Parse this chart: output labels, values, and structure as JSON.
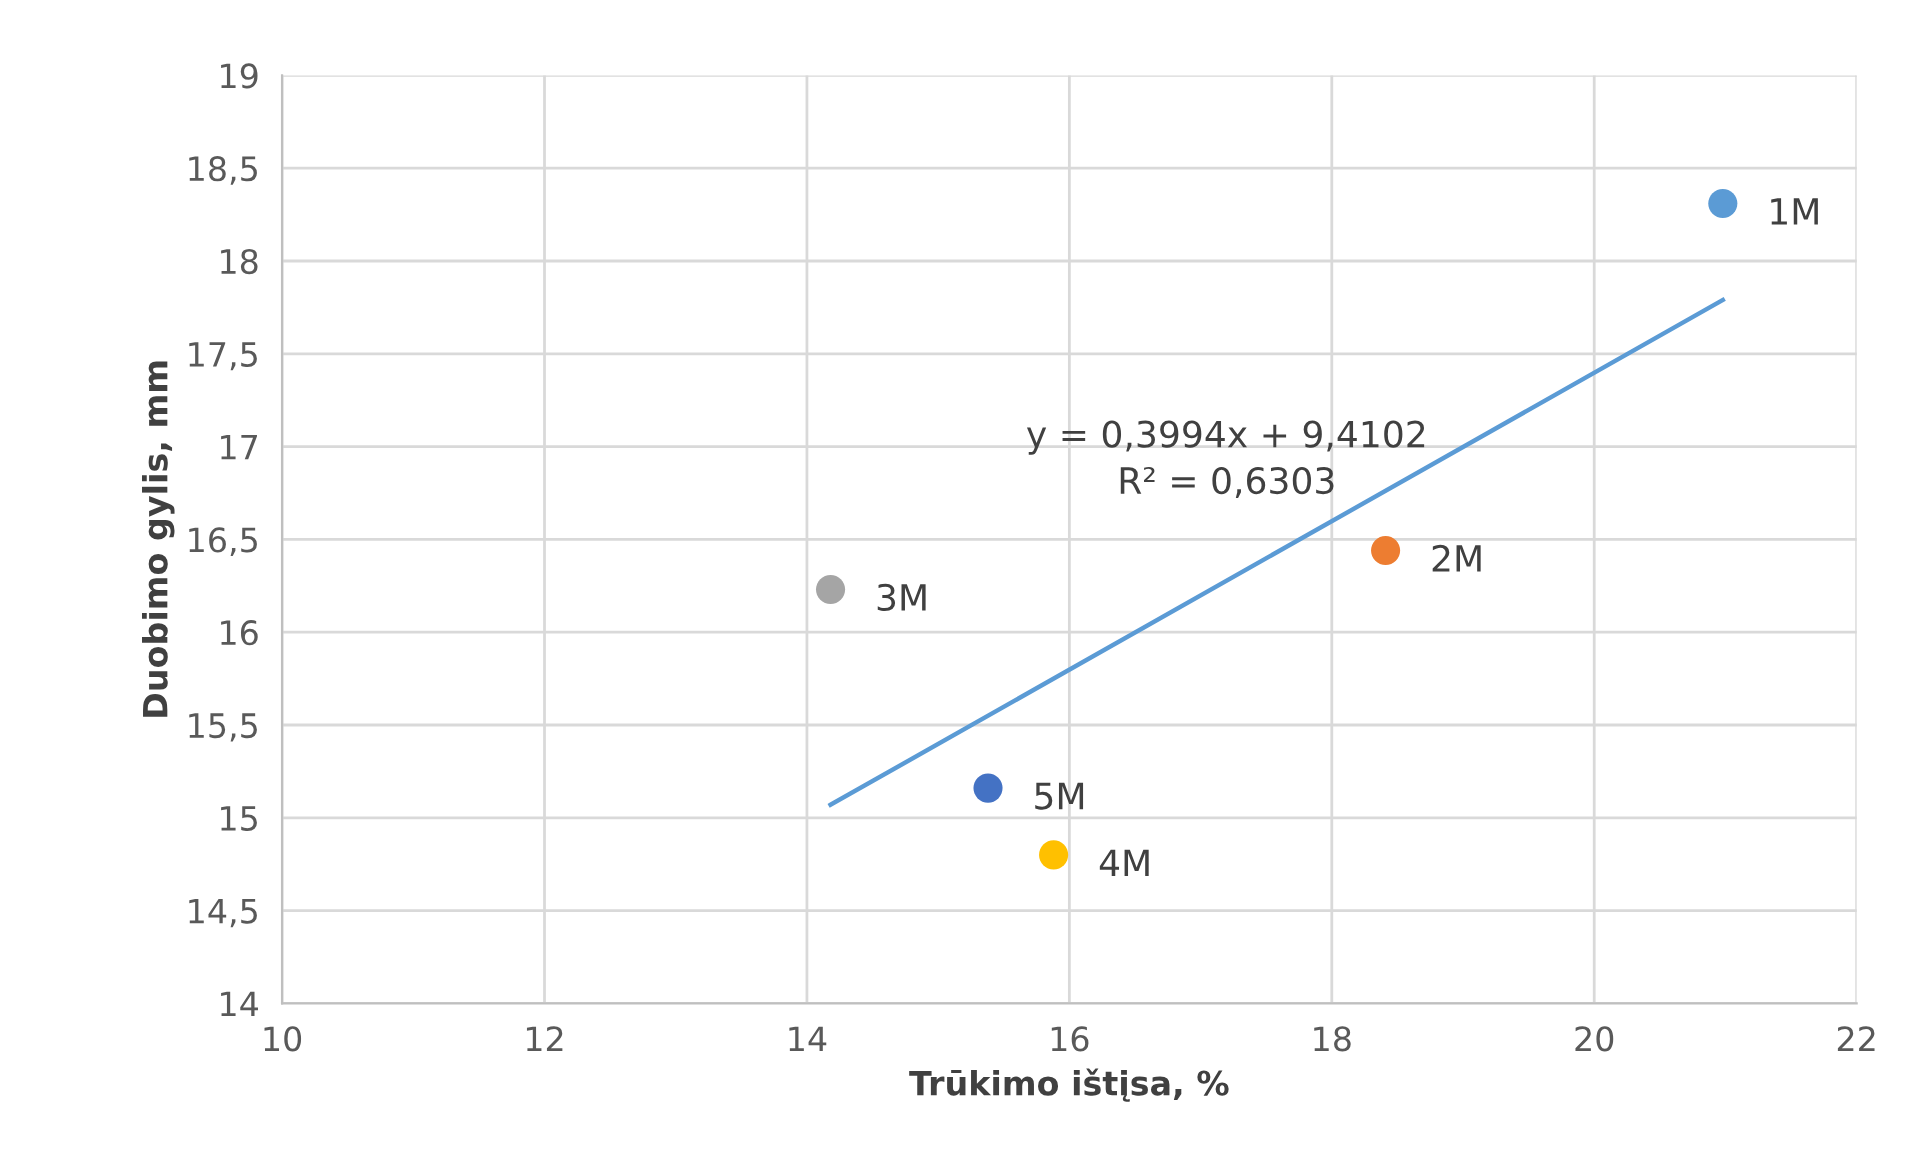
{
  "chart_data": {
    "type": "scatter",
    "xlabel": "Trūkimo ištįsa, %",
    "ylabel": "Duobimo gylis, mm",
    "xlim": [
      10,
      22
    ],
    "xticks": [
      10,
      12,
      14,
      16,
      18,
      20,
      22
    ],
    "ylim": [
      14,
      19
    ],
    "yticks": [
      14,
      {
        "value": 14.5,
        "label": "14,5"
      },
      15,
      {
        "value": 15.5,
        "label": "15,5"
      },
      16,
      {
        "value": 16.5,
        "label": "16,5"
      },
      17,
      {
        "value": 17.5,
        "label": "17,5"
      },
      18,
      {
        "value": 18.5,
        "label": "18,5"
      },
      19
    ],
    "grid": true,
    "series": [
      {
        "name": "1M",
        "marker": "circle",
        "color": "#5b9bd5",
        "x": [
          20.98
        ],
        "values": [
          18.31
        ]
      },
      {
        "name": "2M",
        "marker": "circle",
        "color": "#ed7d31",
        "x": [
          18.41
        ],
        "values": [
          16.44
        ]
      },
      {
        "name": "3M",
        "marker": "circle",
        "color": "#a5a5a5",
        "x": [
          14.18
        ],
        "values": [
          16.23
        ]
      },
      {
        "name": "4M",
        "marker": "circle",
        "color": "#ffc000",
        "x": [
          15.88
        ],
        "values": [
          14.8
        ]
      },
      {
        "name": "5M",
        "marker": "circle",
        "color": "#4472c4",
        "x": [
          15.38
        ],
        "values": [
          15.16
        ]
      },
      {
        "type": "line",
        "marker": "none",
        "color": "#5b9bd5",
        "x": [
          14.18,
          20.98
        ],
        "values": [
          15.07,
          17.79
        ]
      }
    ],
    "annotations": [
      "y = 0,3994x + 9,4102",
      "R² = 0,6303"
    ]
  }
}
